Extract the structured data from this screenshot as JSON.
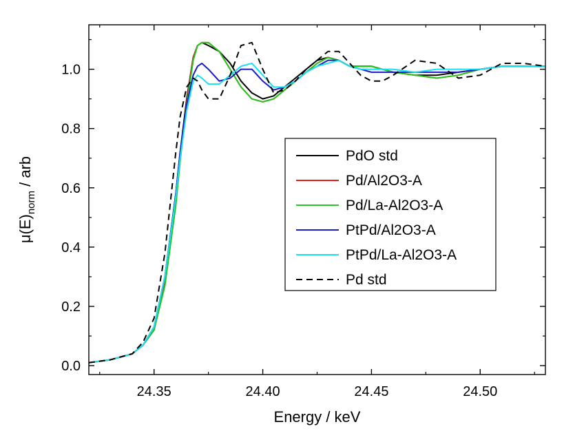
{
  "chart_data": {
    "type": "line",
    "xlabel": "Energy / keV",
    "ylabel": {
      "base": "μ(E)",
      "sub": "norm",
      "suffix": " / arb"
    },
    "xlim": [
      24.32,
      24.53
    ],
    "ylim": [
      -0.03,
      1.15
    ],
    "xticks": [
      24.35,
      24.4,
      24.45,
      24.5
    ],
    "xtick_labels": [
      "24.35",
      "24.40",
      "24.45",
      "24.50"
    ],
    "yticks": [
      0.0,
      0.2,
      0.4,
      0.6,
      0.8,
      1.0
    ],
    "ytick_labels": [
      "0.0",
      "0.2",
      "0.4",
      "0.6",
      "0.8",
      "1.0"
    ],
    "grid": false,
    "legend_position": "center-right",
    "series": [
      {
        "name": "PdO std",
        "color": "#000000",
        "dash": "solid",
        "x": [
          24.32,
          24.33,
          24.34,
          24.345,
          24.35,
          24.355,
          24.36,
          24.362,
          24.365,
          24.368,
          24.37,
          24.372,
          24.375,
          24.38,
          24.385,
          24.39,
          24.395,
          24.4,
          24.405,
          24.41,
          24.415,
          24.42,
          24.425,
          24.43,
          24.435,
          24.44,
          24.445,
          24.45,
          24.455,
          24.46,
          24.47,
          24.48,
          24.49,
          24.5,
          24.51,
          24.52,
          24.53
        ],
        "y": [
          0.01,
          0.02,
          0.04,
          0.07,
          0.13,
          0.3,
          0.58,
          0.72,
          0.9,
          1.04,
          1.08,
          1.09,
          1.08,
          1.06,
          1.02,
          0.96,
          0.92,
          0.9,
          0.91,
          0.94,
          0.97,
          1.0,
          1.03,
          1.04,
          1.03,
          1.01,
          1.01,
          1.01,
          1.0,
          0.99,
          0.98,
          0.98,
          0.99,
          1.0,
          1.01,
          1.01,
          1.01
        ]
      },
      {
        "name": "Pd/Al2O3-A",
        "color": "#e41a1c",
        "dash": "solid",
        "x": [
          24.32,
          24.33,
          24.34,
          24.345,
          24.35,
          24.355,
          24.36,
          24.362,
          24.365,
          24.368,
          24.37,
          24.372,
          24.375,
          24.38,
          24.385,
          24.39,
          24.395,
          24.4,
          24.405,
          24.41,
          24.415,
          24.42,
          24.425,
          24.43,
          24.435,
          24.44,
          24.445,
          24.45,
          24.455,
          24.46,
          24.47,
          24.48,
          24.49,
          24.5,
          24.51,
          24.52,
          24.53
        ],
        "y": [
          0.01,
          0.02,
          0.04,
          0.07,
          0.12,
          0.28,
          0.55,
          0.7,
          0.89,
          1.04,
          1.08,
          1.09,
          1.09,
          1.06,
          1.0,
          0.94,
          0.9,
          0.89,
          0.9,
          0.93,
          0.96,
          0.99,
          1.02,
          1.04,
          1.03,
          1.01,
          1.01,
          1.01,
          1.0,
          0.99,
          0.98,
          0.97,
          0.98,
          1.0,
          1.01,
          1.01,
          1.01
        ]
      },
      {
        "name": "Pd/La-Al2O3-A",
        "color": "#22c81e",
        "dash": "solid",
        "x": [
          24.32,
          24.33,
          24.34,
          24.345,
          24.35,
          24.355,
          24.36,
          24.362,
          24.365,
          24.368,
          24.37,
          24.372,
          24.375,
          24.38,
          24.385,
          24.39,
          24.395,
          24.4,
          24.405,
          24.41,
          24.415,
          24.42,
          24.425,
          24.43,
          24.435,
          24.44,
          24.445,
          24.45,
          24.455,
          24.46,
          24.47,
          24.48,
          24.49,
          24.5,
          24.51,
          24.52,
          24.53
        ],
        "y": [
          0.01,
          0.02,
          0.04,
          0.07,
          0.12,
          0.27,
          0.54,
          0.69,
          0.88,
          1.03,
          1.08,
          1.09,
          1.09,
          1.06,
          1.0,
          0.94,
          0.9,
          0.89,
          0.9,
          0.93,
          0.96,
          0.99,
          1.02,
          1.04,
          1.03,
          1.01,
          1.01,
          1.01,
          1.0,
          0.99,
          0.98,
          0.97,
          0.98,
          1.0,
          1.01,
          1.01,
          1.01
        ]
      },
      {
        "name": "PtPd/Al2O3-A",
        "color": "#1a1ac8",
        "dash": "solid",
        "x": [
          24.32,
          24.33,
          24.34,
          24.345,
          24.35,
          24.355,
          24.36,
          24.362,
          24.365,
          24.368,
          24.37,
          24.372,
          24.375,
          24.38,
          24.385,
          24.39,
          24.395,
          24.4,
          24.405,
          24.41,
          24.415,
          24.42,
          24.425,
          24.43,
          24.435,
          24.44,
          24.445,
          24.45,
          24.455,
          24.46,
          24.47,
          24.48,
          24.49,
          24.5,
          24.51,
          24.52,
          24.53
        ],
        "y": [
          0.01,
          0.02,
          0.04,
          0.07,
          0.13,
          0.3,
          0.58,
          0.72,
          0.88,
          0.98,
          1.01,
          1.02,
          1.0,
          0.96,
          0.97,
          1.0,
          1.0,
          0.96,
          0.93,
          0.94,
          0.96,
          0.99,
          1.01,
          1.03,
          1.03,
          1.01,
          1.0,
          0.99,
          0.99,
          0.99,
          0.99,
          0.99,
          0.99,
          1.0,
          1.01,
          1.01,
          1.01
        ]
      },
      {
        "name": "PtPd/La-Al2O3-A",
        "color": "#19e1f0",
        "dash": "solid",
        "x": [
          24.32,
          24.33,
          24.34,
          24.345,
          24.35,
          24.355,
          24.36,
          24.362,
          24.365,
          24.368,
          24.37,
          24.372,
          24.375,
          24.38,
          24.385,
          24.39,
          24.395,
          24.4,
          24.405,
          24.41,
          24.415,
          24.42,
          24.425,
          24.43,
          24.435,
          24.44,
          24.445,
          24.45,
          24.455,
          24.46,
          24.47,
          24.48,
          24.49,
          24.5,
          24.51,
          24.52,
          24.53
        ],
        "y": [
          0.01,
          0.02,
          0.04,
          0.07,
          0.13,
          0.3,
          0.57,
          0.7,
          0.86,
          0.96,
          0.98,
          0.97,
          0.95,
          0.95,
          0.98,
          1.01,
          1.02,
          0.98,
          0.94,
          0.94,
          0.96,
          0.99,
          1.01,
          1.02,
          1.03,
          1.01,
          1.0,
          1.0,
          1.0,
          1.0,
          0.99,
          1.0,
          1.0,
          1.0,
          1.01,
          1.01,
          1.01
        ]
      },
      {
        "name": "Pd std",
        "color": "#000000",
        "dash": "dashed",
        "x": [
          24.32,
          24.33,
          24.34,
          24.345,
          24.35,
          24.355,
          24.36,
          24.362,
          24.365,
          24.368,
          24.37,
          24.372,
          24.375,
          24.38,
          24.385,
          24.39,
          24.395,
          24.4,
          24.405,
          24.41,
          24.415,
          24.42,
          24.425,
          24.43,
          24.435,
          24.44,
          24.445,
          24.45,
          24.455,
          24.46,
          24.47,
          24.48,
          24.49,
          24.5,
          24.51,
          24.52,
          24.53
        ],
        "y": [
          0.01,
          0.02,
          0.04,
          0.08,
          0.16,
          0.38,
          0.72,
          0.84,
          0.94,
          0.97,
          0.96,
          0.93,
          0.9,
          0.9,
          0.98,
          1.08,
          1.09,
          1.0,
          0.92,
          0.93,
          0.96,
          1.0,
          1.03,
          1.06,
          1.06,
          1.02,
          0.98,
          0.96,
          0.96,
          0.98,
          1.03,
          1.02,
          0.97,
          0.98,
          1.02,
          1.02,
          1.01
        ]
      }
    ]
  }
}
